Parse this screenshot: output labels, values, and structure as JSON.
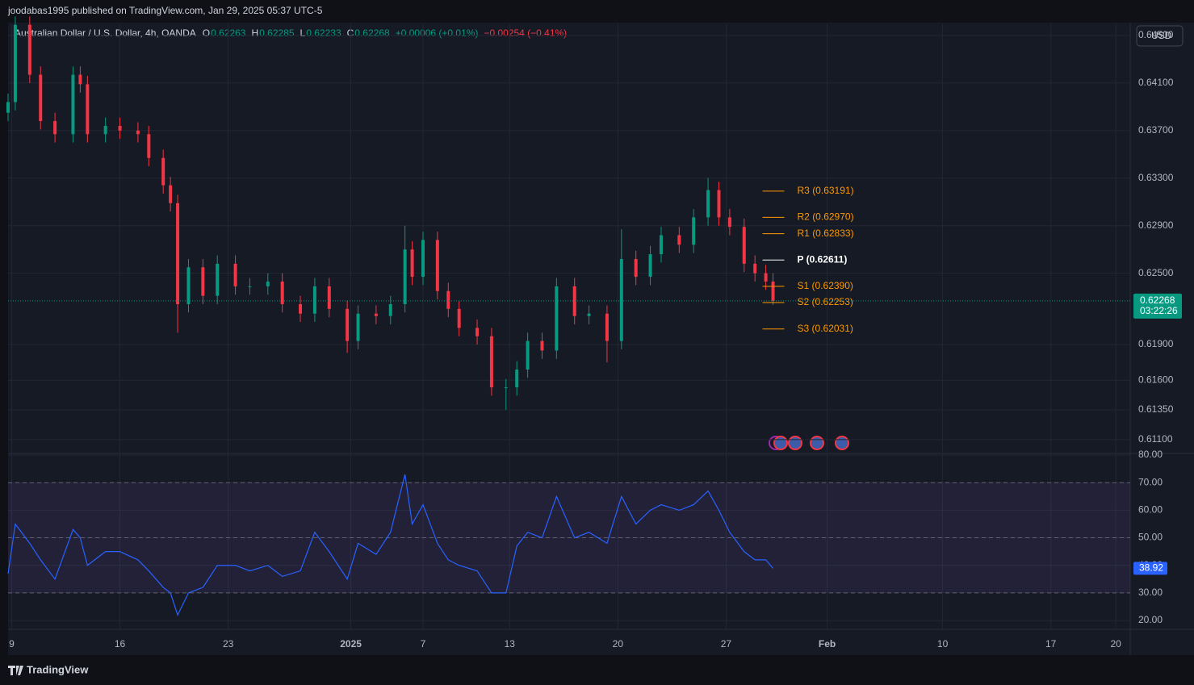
{
  "header": {
    "published": "joodabas1995 published on TradingView.com, Jan 29, 2025 05:37 UTC-5",
    "symbol": "Australian Dollar / U.S. Dollar, 4h, OANDA",
    "ohlc": [
      {
        "key": "O",
        "value": "0.62263"
      },
      {
        "key": "H",
        "value": "0.62285"
      },
      {
        "key": "L",
        "value": "0.62233"
      },
      {
        "key": "C",
        "value": "0.62268"
      }
    ],
    "change": "+0.00006 (+0.01%)",
    "change_from_open": "−0.00254 (−0.41%)",
    "currency": "USD",
    "countdown": "03:22:26"
  },
  "footer": {
    "brand": "TradingView"
  },
  "chart_data": [
    {
      "type": "candlestick",
      "up_color": "#089981",
      "down_color": "#f23645",
      "x": [
        0,
        2,
        6,
        9,
        13,
        18,
        20,
        22,
        27,
        31,
        36,
        39,
        43,
        45,
        47,
        50,
        54,
        58,
        63,
        67,
        72,
        76,
        81,
        85,
        89,
        94,
        97,
        102,
        106,
        110,
        112,
        115,
        119,
        122,
        125,
        130,
        134,
        138,
        141,
        144,
        148,
        152,
        157,
        161,
        166,
        170,
        174,
        178,
        181,
        186,
        190,
        194,
        197,
        200,
        204,
        207,
        210,
        212
      ],
      "open": [
        0.6385,
        0.6394,
        0.6459,
        0.6417,
        0.6378,
        0.6367,
        0.6417,
        0.6409,
        0.6367,
        0.6374,
        0.637,
        0.6367,
        0.6347,
        0.6324,
        0.6309,
        0.6224,
        0.6255,
        0.6231,
        0.6258,
        0.6239,
        0.6239,
        0.6243,
        0.6224,
        0.6216,
        0.6239,
        0.622,
        0.6193,
        0.6216,
        0.6214,
        0.6224,
        0.627,
        0.6247,
        0.6278,
        0.6235,
        0.622,
        0.6204,
        0.6197,
        0.6154,
        0.6154,
        0.6169,
        0.6193,
        0.6185,
        0.6239,
        0.6214,
        0.6216,
        0.6193,
        0.6262,
        0.6247,
        0.6266,
        0.6282,
        0.6274,
        0.6297,
        0.632,
        0.6297,
        0.6289,
        0.6258,
        0.625,
        0.6243
      ],
      "high": [
        0.6401,
        0.6466,
        0.6466,
        0.6424,
        0.6385,
        0.6424,
        0.6424,
        0.6416,
        0.6381,
        0.6381,
        0.6377,
        0.6374,
        0.6354,
        0.6331,
        0.6316,
        0.6262,
        0.6262,
        0.6265,
        0.6265,
        0.6246,
        0.625,
        0.625,
        0.6231,
        0.6246,
        0.6246,
        0.6227,
        0.6223,
        0.6223,
        0.6231,
        0.629,
        0.6277,
        0.6285,
        0.6285,
        0.6242,
        0.6227,
        0.6211,
        0.6204,
        0.6161,
        0.6176,
        0.62,
        0.62,
        0.6246,
        0.6246,
        0.6223,
        0.6223,
        0.6287,
        0.6269,
        0.6273,
        0.6289,
        0.6289,
        0.6304,
        0.633,
        0.6327,
        0.6304,
        0.6296,
        0.6265,
        0.6257,
        0.625
      ],
      "low": [
        0.6378,
        0.6387,
        0.641,
        0.6371,
        0.636,
        0.636,
        0.6402,
        0.636,
        0.636,
        0.6363,
        0.636,
        0.634,
        0.6317,
        0.6302,
        0.62,
        0.6217,
        0.6224,
        0.6224,
        0.6232,
        0.6232,
        0.6232,
        0.6217,
        0.6209,
        0.6209,
        0.6213,
        0.6183,
        0.6186,
        0.6207,
        0.6207,
        0.6217,
        0.624,
        0.624,
        0.6228,
        0.6213,
        0.6197,
        0.619,
        0.6147,
        0.6135,
        0.6147,
        0.6162,
        0.6178,
        0.6178,
        0.6207,
        0.6207,
        0.6175,
        0.6186,
        0.624,
        0.624,
        0.6259,
        0.6267,
        0.6267,
        0.629,
        0.629,
        0.6282,
        0.6251,
        0.6243,
        0.6236,
        0.62233
      ],
      "close": [
        0.6394,
        0.6459,
        0.6417,
        0.6378,
        0.6367,
        0.6417,
        0.6409,
        0.6367,
        0.6374,
        0.637,
        0.6367,
        0.6347,
        0.6324,
        0.6309,
        0.6224,
        0.6255,
        0.6231,
        0.6258,
        0.6239,
        0.6239,
        0.6243,
        0.6224,
        0.6216,
        0.6239,
        0.622,
        0.6193,
        0.6216,
        0.6214,
        0.6224,
        0.627,
        0.6247,
        0.6278,
        0.6235,
        0.622,
        0.6204,
        0.6197,
        0.6154,
        0.6154,
        0.6169,
        0.6193,
        0.6185,
        0.6239,
        0.6214,
        0.6216,
        0.6193,
        0.6262,
        0.6247,
        0.6266,
        0.6282,
        0.6274,
        0.6297,
        0.632,
        0.6297,
        0.6289,
        0.6258,
        0.625,
        0.6243,
        0.62268
      ],
      "last_price": 0.62268,
      "pivots": [
        {
          "label": "R3 (0.63191)",
          "value": 0.63191,
          "color": "#ff9800"
        },
        {
          "label": "R2 (0.62970)",
          "value": 0.6297,
          "color": "#ff9800"
        },
        {
          "label": "R1 (0.62833)",
          "value": 0.62833,
          "color": "#ff9800"
        },
        {
          "label": "P (0.62611)",
          "value": 0.62611,
          "color": "#ffffff"
        },
        {
          "label": "S1 (0.62390)",
          "value": 0.6239,
          "color": "#ff9800"
        },
        {
          "label": "S2 (0.62253)",
          "value": 0.62253,
          "color": "#ff9800"
        },
        {
          "label": "S3 (0.62031)",
          "value": 0.62031,
          "color": "#ff9800"
        }
      ],
      "xlim": [
        0,
        311
      ],
      "xticks": [
        {
          "value": 1,
          "label": "9"
        },
        {
          "value": 31,
          "label": "16"
        },
        {
          "value": 61,
          "label": "23"
        },
        {
          "value": 95,
          "label": "2025"
        },
        {
          "value": 115,
          "label": "7"
        },
        {
          "value": 139,
          "label": "13"
        },
        {
          "value": 169,
          "label": "20"
        },
        {
          "value": 199,
          "label": "27"
        },
        {
          "value": 227,
          "label": "Feb"
        },
        {
          "value": 259,
          "label": "10"
        },
        {
          "value": 289,
          "label": "17"
        },
        {
          "value": 307,
          "label": "20"
        }
      ],
      "ylim": [
        0.60984,
        0.64595
      ],
      "yticks": [
        {
          "value": 0.645,
          "label": "0.64500"
        },
        {
          "value": 0.641,
          "label": "0.64100"
        },
        {
          "value": 0.637,
          "label": "0.63700"
        },
        {
          "value": 0.633,
          "label": "0.63300"
        },
        {
          "value": 0.629,
          "label": "0.62900"
        },
        {
          "value": 0.625,
          "label": "0.62500"
        },
        {
          "value": 0.619,
          "label": "0.61900"
        },
        {
          "value": 0.616,
          "label": "0.61600"
        },
        {
          "value": 0.6135,
          "label": "0.61350"
        },
        {
          "value": 0.611,
          "label": "0.61100"
        }
      ],
      "grid": true
    },
    {
      "type": "line",
      "color": "#2962ff",
      "x": [
        0,
        2,
        6,
        9,
        13,
        18,
        20,
        22,
        27,
        31,
        36,
        39,
        43,
        45,
        47,
        50,
        54,
        58,
        63,
        67,
        72,
        76,
        81,
        85,
        89,
        94,
        97,
        102,
        106,
        110,
        112,
        115,
        119,
        122,
        125,
        130,
        134,
        138,
        141,
        144,
        148,
        152,
        157,
        161,
        166,
        170,
        174,
        178,
        181,
        186,
        190,
        194,
        197,
        200,
        204,
        207,
        210,
        212
      ],
      "values": [
        37,
        55,
        48,
        42,
        35,
        53,
        50,
        40,
        45,
        45,
        42,
        38,
        32,
        30,
        22,
        30,
        32,
        40,
        40,
        38,
        40,
        36,
        38,
        52,
        45,
        35,
        48,
        44,
        52,
        73,
        55,
        62,
        48,
        42,
        40,
        38,
        30,
        30,
        47,
        52,
        50,
        65,
        50,
        52,
        48,
        65,
        55,
        60,
        62,
        60,
        62,
        67,
        60,
        52,
        45,
        42,
        42,
        38.92
      ],
      "band": [
        30,
        70
      ],
      "midline": 50,
      "xlim": [
        0,
        311
      ],
      "ylim": [
        16.8,
        80.6
      ],
      "yticks": [
        {
          "value": 80,
          "label": "80.00"
        },
        {
          "value": 70,
          "label": "70.00"
        },
        {
          "value": 60,
          "label": "60.00"
        },
        {
          "value": 50,
          "label": "50.00"
        },
        {
          "value": 40,
          "label": "40.00"
        },
        {
          "value": 30,
          "label": "30.00"
        },
        {
          "value": 20,
          "label": "20.00"
        }
      ],
      "grid": true
    }
  ]
}
